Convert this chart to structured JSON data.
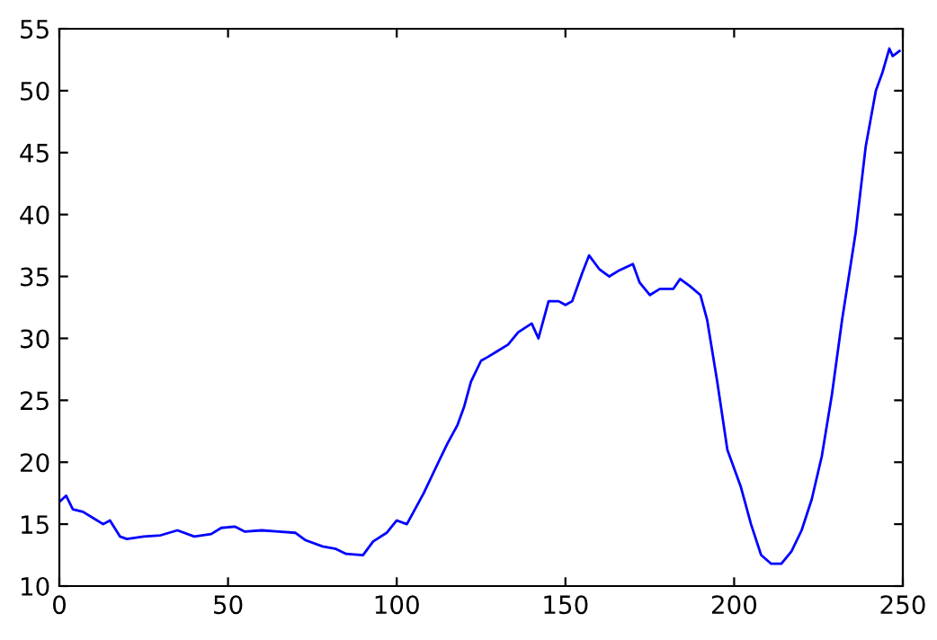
{
  "chart_data": {
    "type": "line",
    "color": "#0000ff",
    "x": [
      0,
      2,
      4,
      7,
      10,
      13,
      15,
      18,
      20,
      25,
      30,
      35,
      40,
      45,
      48,
      52,
      55,
      60,
      65,
      70,
      73,
      78,
      82,
      85,
      90,
      93,
      97,
      100,
      103,
      105,
      108,
      112,
      115,
      118,
      120,
      122,
      125,
      127,
      130,
      133,
      136,
      140,
      142,
      145,
      148,
      150,
      152,
      155,
      157,
      160,
      163,
      166,
      170,
      172,
      175,
      178,
      182,
      184,
      187,
      190,
      192,
      195,
      198,
      202,
      205,
      208,
      211,
      214,
      217,
      220,
      223,
      226,
      229,
      232,
      236,
      239,
      242,
      244,
      246,
      247,
      248,
      249
    ],
    "values": [
      16.8,
      17.3,
      16.2,
      16.0,
      15.5,
      15.0,
      15.3,
      14.0,
      13.8,
      14.0,
      14.1,
      14.5,
      14.0,
      14.2,
      14.7,
      14.8,
      14.4,
      14.5,
      14.4,
      14.3,
      13.7,
      13.2,
      13.0,
      12.6,
      12.5,
      13.6,
      14.3,
      15.3,
      15.0,
      16.0,
      17.5,
      19.8,
      21.5,
      23.0,
      24.5,
      26.5,
      28.2,
      28.5,
      29.0,
      29.5,
      30.5,
      31.2,
      30.0,
      33.0,
      33.0,
      32.7,
      33.0,
      35.3,
      36.7,
      35.6,
      35.0,
      35.5,
      36.0,
      34.5,
      33.5,
      34.0,
      34.0,
      34.8,
      34.2,
      33.5,
      31.5,
      26.5,
      21.0,
      18.0,
      15.0,
      12.5,
      11.8,
      11.8,
      12.8,
      14.5,
      17.0,
      20.5,
      25.5,
      31.5,
      38.5,
      45.5,
      50.0,
      51.5,
      53.4,
      52.8,
      53.0,
      53.2
    ],
    "xlim": [
      0,
      250
    ],
    "xticks": [
      0,
      50,
      100,
      150,
      200,
      250
    ],
    "ylim": [
      10,
      55
    ],
    "yticks": [
      10,
      15,
      20,
      25,
      30,
      35,
      40,
      45,
      50,
      55
    ],
    "grid": false
  }
}
